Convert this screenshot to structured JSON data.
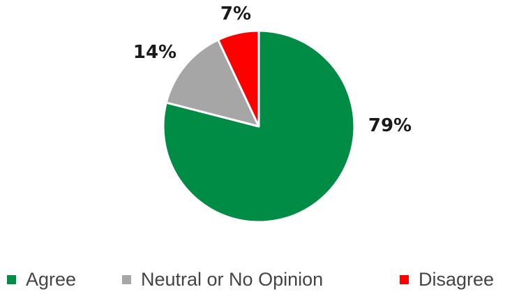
{
  "chart_data": {
    "type": "pie",
    "title": "",
    "categories": [
      "Agree",
      "Neutral or No Opinion",
      "Disagree"
    ],
    "values": [
      79,
      14,
      7
    ],
    "labels": [
      "79%",
      "14%",
      "7%"
    ],
    "colors": [
      "#008c45",
      "#a6a6a6",
      "#ff0000"
    ],
    "start_angle_deg": 0,
    "direction": "clockwise",
    "legend_placement": "bottom"
  }
}
